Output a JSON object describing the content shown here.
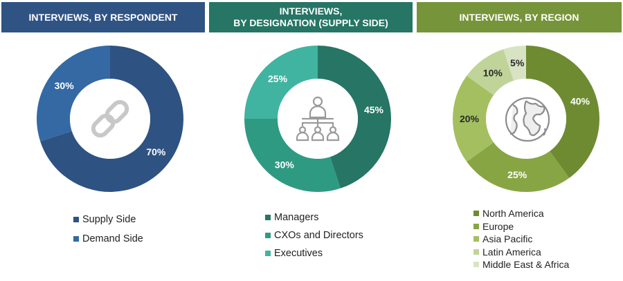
{
  "colors": {
    "header1": "#2f5383",
    "header2": "#267565",
    "header3": "#76943a"
  },
  "chart_data": [
    {
      "type": "pie",
      "title": "INTERVIEWS, BY RESPONDENT",
      "icon": "chain-link-icon",
      "categories": [
        "Supply Side",
        "Demand Side"
      ],
      "values": [
        70,
        30
      ],
      "labels": [
        "70%",
        "30%"
      ],
      "colors": [
        "#2e5282",
        "#3469a4"
      ],
      "legend_position": "bottom"
    },
    {
      "type": "pie",
      "title_lines": [
        "INTERVIEWS,",
        "BY DESIGNATION (SUPPLY SIDE)"
      ],
      "icon": "org-hierarchy-icon",
      "categories": [
        "Managers",
        "CXOs and Directors",
        "Executives"
      ],
      "values": [
        45,
        30,
        25
      ],
      "labels": [
        "45%",
        "30%",
        "25%"
      ],
      "colors": [
        "#267565",
        "#2f9a82",
        "#40b4a0"
      ],
      "legend_position": "bottom"
    },
    {
      "type": "pie",
      "title": "INTERVIEWS, BY REGION",
      "icon": "globe-icon",
      "categories": [
        "North America",
        "Europe",
        "Asia Pacific",
        "Latin America",
        "Middle East & Africa"
      ],
      "values": [
        40,
        25,
        20,
        10,
        5
      ],
      "labels": [
        "40%",
        "25%",
        "20%",
        "10%",
        "5%"
      ],
      "colors": [
        "#6e8b32",
        "#88a544",
        "#a4bf5f",
        "#c0d49a",
        "#d8e3c4"
      ],
      "legend_position": "bottom"
    }
  ]
}
